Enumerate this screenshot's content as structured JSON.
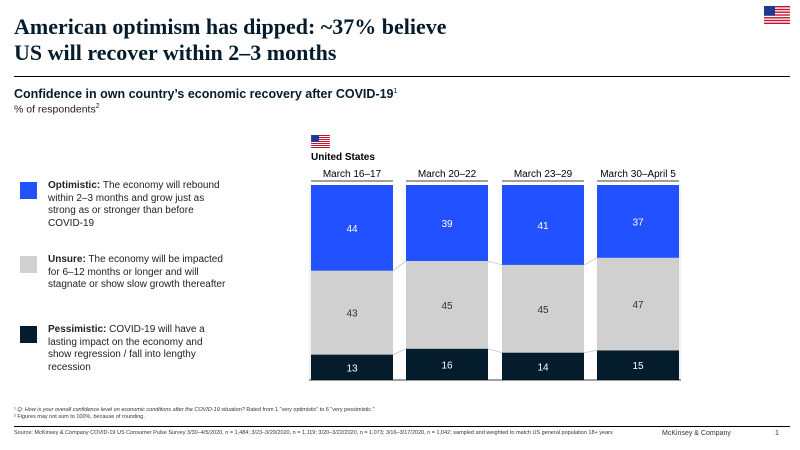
{
  "headline": {
    "line1": "American optimism has dipped: ~37% believe",
    "line2": "US will recover within 2–3 months"
  },
  "subtitle": "Confidence in own country’s economic recovery after COVID-19",
  "subtitle_note": "1",
  "unit": "% of respondents",
  "unit_note": "2",
  "country": "United States",
  "legend": [
    {
      "key": "optimistic",
      "label": "Optimistic:",
      "text": "The economy will rebound within 2–3 months and grow just as strong as or stronger than before COVID-19",
      "color": "#2251ff"
    },
    {
      "key": "unsure",
      "label": "Unsure:",
      "text": "The economy will be impacted for 6–12 months or longer and will stagnate or show slow growth thereafter",
      "color": "#d0d0d0"
    },
    {
      "key": "pessimistic",
      "label": "Pessimistic:",
      "text": "COVID-19 will have a lasting impact on the economy and show regression / fall into lengthy recession",
      "color": "#051c2c"
    }
  ],
  "chart_data": {
    "type": "bar",
    "stacked": true,
    "categories": [
      "March 16–17",
      "March 20–22",
      "March 23–29",
      "March 30–April 5"
    ],
    "series": [
      {
        "name": "Optimistic",
        "color": "#2251ff",
        "values": [
          44,
          39,
          41,
          37
        ]
      },
      {
        "name": "Unsure",
        "color": "#d0d0d0",
        "values": [
          43,
          45,
          45,
          47
        ]
      },
      {
        "name": "Pessimistic",
        "color": "#051c2c",
        "values": [
          13,
          16,
          14,
          15
        ]
      }
    ],
    "ylim": [
      0,
      100
    ],
    "grid": false
  },
  "footnotes": {
    "note1_q": "Q: How is your overall confidence level on economic conditions after the COVID-19 situation?",
    "note1_rest": "Rated from 1 “very optimistic” to 6 “very pessimistic.”",
    "note2": "Figures may not sum to 100%, because of rounding."
  },
  "source": "Source: McKinsey & Company COVID-19 US Consumer Pulse Survey 3/30–4/5/2020, n = 1,484; 3/23–3/29/2020, n = 1,119; 3/20–3/22/2020, n = 1,073; 3/16–3/17/2020, n = 1,042; sampled and weighted to match US general population 18+ years",
  "brand": "McKinsey & Company",
  "page_number": "1"
}
